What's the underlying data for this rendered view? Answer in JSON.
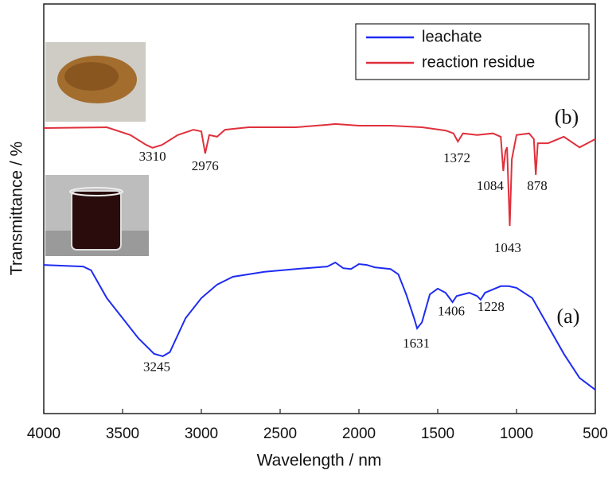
{
  "chart_data": {
    "type": "line",
    "xlabel": "Wavelength / nm",
    "ylabel": "Transmittance / %",
    "xlim": [
      4000,
      500
    ],
    "xticks": [
      4000,
      3500,
      3000,
      2500,
      2000,
      1500,
      1000,
      500
    ],
    "ylim": [
      0,
      100
    ],
    "legend": "upper right",
    "series": [
      {
        "name": "leachate",
        "color": "#1f2cf0",
        "x": [
          4000,
          3750,
          3700,
          3600,
          3500,
          3400,
          3300,
          3245,
          3200,
          3100,
          3000,
          2900,
          2800,
          2600,
          2400,
          2200,
          2150,
          2100,
          2050,
          2000,
          1950,
          1900,
          1800,
          1750,
          1700,
          1650,
          1631,
          1600,
          1550,
          1500,
          1450,
          1406,
          1380,
          1300,
          1250,
          1228,
          1200,
          1100,
          1050,
          1000,
          900,
          800,
          700,
          600,
          500
        ],
        "values": [
          36.3,
          35.9,
          35.0,
          28.2,
          23.3,
          18.4,
          14.6,
          14.0,
          15.0,
          23.3,
          28.2,
          31.5,
          33.4,
          34.6,
          35.3,
          35.9,
          36.9,
          35.5,
          35.3,
          36.5,
          36.3,
          35.7,
          35.3,
          34.0,
          29.1,
          23.3,
          20.8,
          22.3,
          29.1,
          30.5,
          29.5,
          27.2,
          28.7,
          29.5,
          28.7,
          27.8,
          29.5,
          31.1,
          31.1,
          30.7,
          28.2,
          21.4,
          14.6,
          8.7,
          5.8
        ]
      },
      {
        "name": "reaction residue",
        "color": "#e0303c",
        "x": [
          4000,
          3600,
          3450,
          3350,
          3310,
          3250,
          3150,
          3050,
          3000,
          2976,
          2950,
          2900,
          2850,
          2700,
          2400,
          2200,
          2150,
          2000,
          1800,
          1600,
          1450,
          1400,
          1372,
          1340,
          1250,
          1150,
          1100,
          1084,
          1070,
          1060,
          1043,
          1030,
          1000,
          920,
          890,
          878,
          865,
          800,
          700,
          600,
          550,
          500
        ],
        "values": [
          69.7,
          69.9,
          68.0,
          65.6,
          64.9,
          65.6,
          68.0,
          69.3,
          68.9,
          63.5,
          68.0,
          67.6,
          69.3,
          69.9,
          69.9,
          70.5,
          70.7,
          70.3,
          70.3,
          69.9,
          69.1,
          68.4,
          66.4,
          68.4,
          68.0,
          68.4,
          67.6,
          59.2,
          64.1,
          65.0,
          45.8,
          62.1,
          68.0,
          68.4,
          67.0,
          58.3,
          66.0,
          66.0,
          67.6,
          65.0,
          66.0,
          67.0
        ]
      }
    ],
    "annotations": [
      {
        "text": "(b)",
        "x": 682,
        "y": 71.9
      },
      {
        "text": "3310",
        "x": 3310,
        "y": 62.5
      },
      {
        "text": "2976",
        "x": 2976,
        "y": 60.2
      },
      {
        "text": "1372",
        "x": 1379,
        "y": 62.1
      },
      {
        "text": "1084",
        "x": 1167,
        "y": 55.3
      },
      {
        "text": "878",
        "x": 869,
        "y": 55.3
      },
      {
        "text": "1043",
        "x": 1056,
        "y": 40.2
      },
      {
        "text": "(a)",
        "x": 672,
        "y": 23.3
      },
      {
        "text": "3245",
        "x": 3283,
        "y": 11.1
      },
      {
        "text": "1631",
        "x": 1636,
        "y": 16.9
      },
      {
        "text": "1406",
        "x": 1414,
        "y": 24.7
      },
      {
        "text": "1228",
        "x": 1162,
        "y": 25.8
      }
    ]
  }
}
